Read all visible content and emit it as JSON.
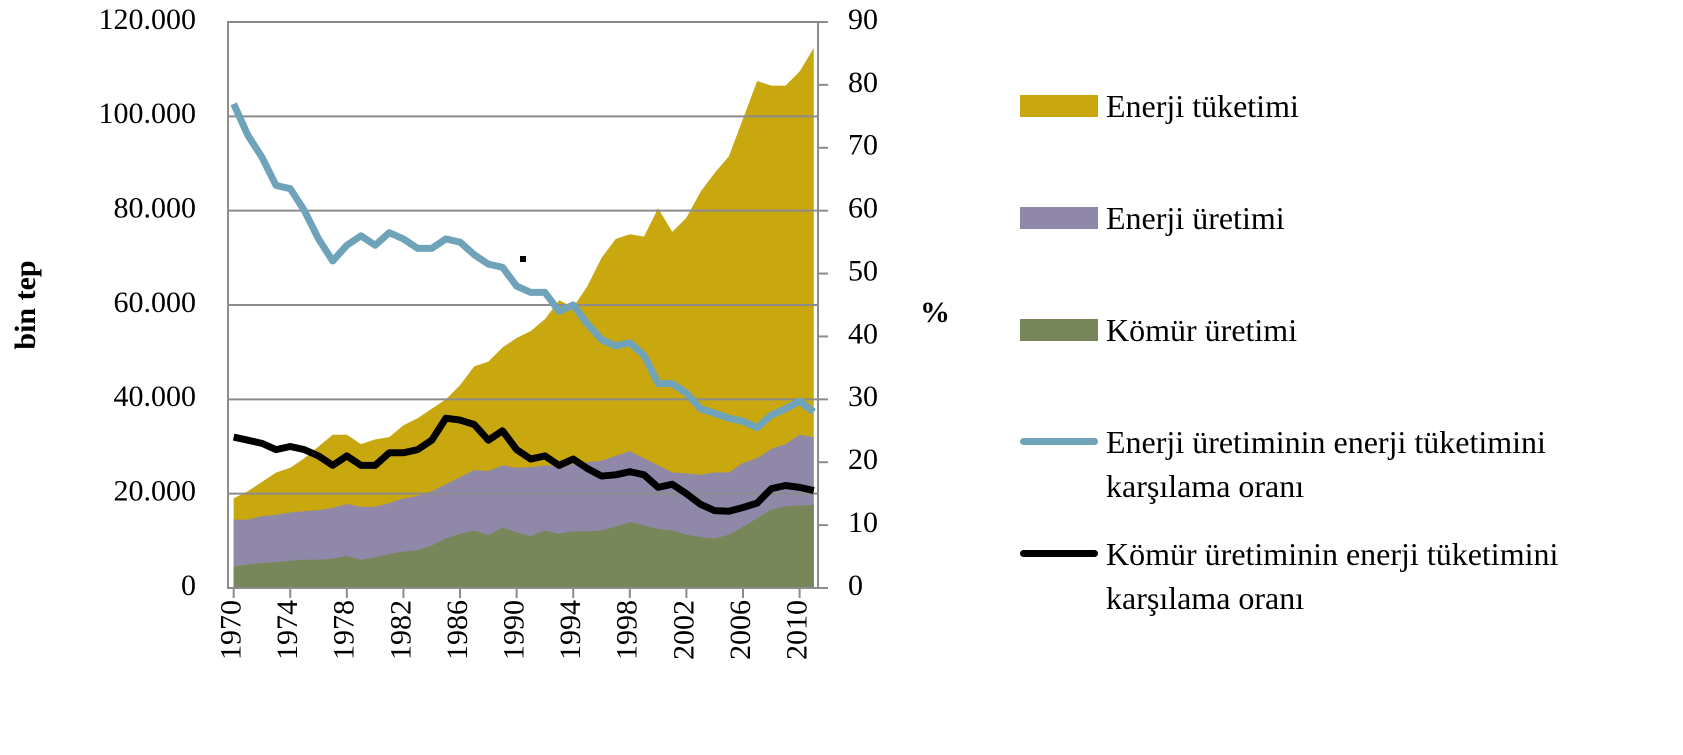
{
  "chart_data": {
    "type": "area",
    "y_label": "bin tep",
    "y2_label": "%",
    "x": [
      1970,
      1971,
      1972,
      1973,
      1974,
      1975,
      1976,
      1977,
      1978,
      1979,
      1980,
      1981,
      1982,
      1983,
      1984,
      1985,
      1986,
      1987,
      1988,
      1989,
      1990,
      1991,
      1992,
      1993,
      1994,
      1995,
      1996,
      1997,
      1998,
      1999,
      2000,
      2001,
      2002,
      2003,
      2004,
      2005,
      2006,
      2007,
      2008,
      2009,
      2010,
      2011
    ],
    "xlim": [
      1969.6,
      2011.3
    ],
    "xticks": [
      1970,
      1974,
      1978,
      1982,
      1986,
      1990,
      1994,
      1998,
      2002,
      2006,
      2010
    ],
    "ylim": [
      0,
      120000
    ],
    "yticks": [
      0,
      {
        "value": 20000,
        "label": "20.000"
      },
      {
        "value": 40000,
        "label": "40.000"
      },
      {
        "value": 60000,
        "label": "60.000"
      },
      {
        "value": 80000,
        "label": "80.000"
      },
      {
        "value": 100000,
        "label": "100.000"
      },
      {
        "value": 120000,
        "label": "120.000"
      }
    ],
    "y2lim": [
      0,
      90
    ],
    "y2ticks": [
      0,
      10,
      20,
      30,
      40,
      50,
      60,
      70,
      80,
      90
    ],
    "grid": true,
    "legend": "right",
    "series": [
      {
        "name": "Enerji tüketimi",
        "type": "area",
        "color": "#c9a80f",
        "values": [
          19000,
          20500,
          22500,
          24500,
          25500,
          27500,
          30000,
          32500,
          32500,
          30500,
          31500,
          32000,
          34500,
          36000,
          38000,
          40000,
          43000,
          47000,
          48000,
          51000,
          53000,
          54500,
          57000,
          61000,
          59500,
          64000,
          70000,
          74000,
          75000,
          74500,
          80500,
          75500,
          78500,
          84000,
          88000,
          91500,
          99500,
          107500,
          106500,
          106500,
          109500,
          114500
        ]
      },
      {
        "name": "Enerji üretimi",
        "type": "area",
        "color": "#8f88a9",
        "values": [
          14500,
          14500,
          15200,
          15500,
          16000,
          16300,
          16500,
          17000,
          17800,
          17200,
          17200,
          18000,
          19000,
          19500,
          20500,
          22000,
          23500,
          25000,
          24800,
          26000,
          25500,
          25600,
          26000,
          25800,
          26200,
          26700,
          27000,
          28000,
          29000,
          27500,
          26000,
          24500,
          24300,
          24000,
          24500,
          24500,
          26500,
          27500,
          29500,
          30500,
          32500,
          32000
        ]
      },
      {
        "name": "Kömür üretimi",
        "type": "area",
        "color": "#77875a",
        "values": [
          4500,
          5000,
          5300,
          5500,
          5800,
          6000,
          6000,
          6200,
          6800,
          6000,
          6500,
          7200,
          7700,
          8000,
          9000,
          10500,
          11500,
          12200,
          11200,
          12800,
          11800,
          11000,
          12200,
          11500,
          12000,
          12000,
          12200,
          13000,
          14000,
          13300,
          12500,
          12200,
          11300,
          10800,
          10500,
          11300,
          13000,
          14800,
          16700,
          17300,
          17500,
          17600
        ]
      },
      {
        "name": "Enerji üretiminin enerji tüketimini karşılama oranı",
        "type": "line",
        "axis": "y2",
        "color": "#6fa3b9",
        "values": [
          77,
          72,
          68.5,
          64,
          63.5,
          60,
          55.5,
          52,
          54.5,
          56,
          54.5,
          56.5,
          55.5,
          54,
          54,
          55.5,
          55,
          53,
          51.5,
          51,
          48,
          47,
          47,
          44,
          45,
          42,
          39.5,
          38.5,
          39,
          37,
          32.5,
          32.5,
          31,
          28.5,
          27.8,
          27,
          26.5,
          25.5,
          27.5,
          28.5,
          29.7,
          28
        ]
      },
      {
        "name": "Kömür üretiminin enerji tüketimini karşılama oranı",
        "type": "line",
        "axis": "y2",
        "color": "#000000",
        "values": [
          24,
          23.5,
          23,
          22,
          22.5,
          22,
          21,
          19.5,
          21,
          19.5,
          19.5,
          21.5,
          21.5,
          22,
          23.5,
          27,
          26.7,
          26,
          23.5,
          25,
          22,
          20.5,
          21,
          19.5,
          20.5,
          19,
          17.8,
          18,
          18.5,
          18,
          16,
          16.5,
          15,
          13.3,
          12.3,
          12.2,
          12.8,
          13.5,
          15.8,
          16.3,
          16,
          15.5
        ]
      }
    ]
  }
}
